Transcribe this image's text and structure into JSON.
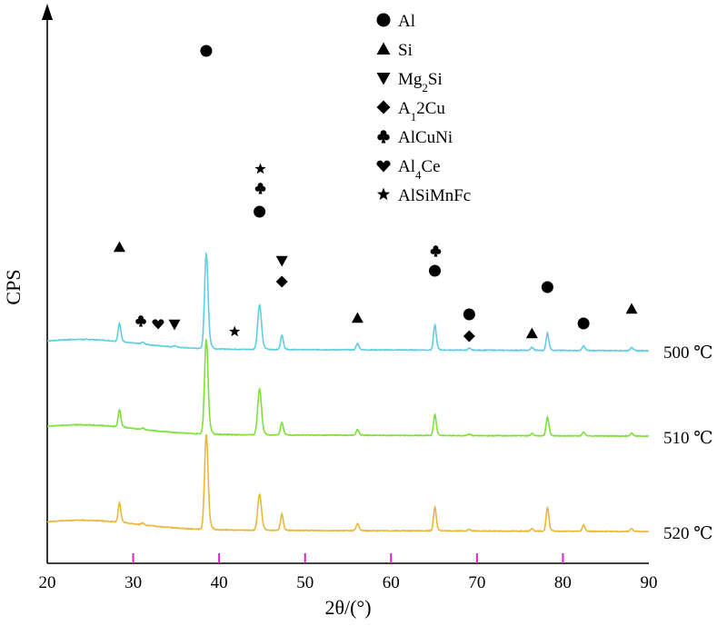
{
  "chart_data": {
    "type": "line",
    "title": "",
    "xlabel": "2θ/(°)",
    "ylabel": "CPS",
    "xlim": [
      20,
      90
    ],
    "xticks": [
      20,
      30,
      40,
      50,
      60,
      70,
      80,
      90
    ],
    "grid": false,
    "legend": {
      "placement": "top-center",
      "entries": [
        {
          "marker": "circle",
          "label": "Al"
        },
        {
          "marker": "triangle-up",
          "label": "Si"
        },
        {
          "marker": "triangle-down",
          "label": "Mg2Si"
        },
        {
          "marker": "diamond",
          "label": "A12Cu"
        },
        {
          "marker": "club",
          "label": "AlCuNi"
        },
        {
          "marker": "heart",
          "label": "Al4Ce"
        },
        {
          "marker": "star",
          "label": "AlSiMnFc"
        }
      ]
    },
    "peaks": [
      {
        "x": 28.4,
        "phase": "Si"
      },
      {
        "x": 31.1,
        "phase": "AlCuNi"
      },
      {
        "x": 32.8,
        "phase": "Al4Ce"
      },
      {
        "x": 34.8,
        "phase": "Mg2Si"
      },
      {
        "x": 38.5,
        "phase": "Al"
      },
      {
        "x": 41.8,
        "phase": "AlSiMnFc"
      },
      {
        "x": 44.7,
        "phase": "Al"
      },
      {
        "x": 44.8,
        "phase": "AlCuNi"
      },
      {
        "x": 44.8,
        "phase": "AlSiMnFc"
      },
      {
        "x": 47.3,
        "phase": "Mg2Si"
      },
      {
        "x": 47.3,
        "phase": "A12Cu"
      },
      {
        "x": 56.1,
        "phase": "Si"
      },
      {
        "x": 65.1,
        "phase": "Al"
      },
      {
        "x": 65.2,
        "phase": "AlCuNi"
      },
      {
        "x": 69.1,
        "phase": "Al"
      },
      {
        "x": 69.1,
        "phase": "A12Cu"
      },
      {
        "x": 76.4,
        "phase": "Si"
      },
      {
        "x": 78.2,
        "phase": "Al"
      },
      {
        "x": 82.4,
        "phase": "Al"
      },
      {
        "x": 88.0,
        "phase": "Si"
      }
    ],
    "series": [
      {
        "name": "500 ℃",
        "color": "#5fcfe0",
        "x": [
          20,
          28.4,
          31.1,
          34.8,
          38.5,
          44.7,
          47.3,
          56.1,
          65.1,
          69.1,
          76.4,
          78.2,
          82.4,
          88.0,
          90
        ],
        "y": [
          0,
          58,
          6,
          5,
          300,
          140,
          46,
          20,
          80,
          6,
          9,
          55,
          14,
          11,
          0
        ]
      },
      {
        "name": "510 ℃",
        "color": "#7ee03a",
        "x": [
          20,
          28.4,
          31.1,
          38.5,
          44.7,
          47.3,
          56.1,
          65.1,
          69.1,
          76.4,
          78.2,
          82.4,
          88.0,
          90
        ],
        "y": [
          0,
          55,
          5,
          300,
          145,
          40,
          18,
          66,
          5,
          7,
          60,
          13,
          9,
          0
        ]
      },
      {
        "name": "520 ℃",
        "color": "#e8b83a",
        "x": [
          20,
          28.4,
          31.1,
          38.5,
          44.7,
          47.3,
          56.1,
          65.1,
          69.1,
          76.4,
          78.2,
          82.4,
          88.0,
          90
        ],
        "y": [
          0,
          62,
          6,
          300,
          112,
          52,
          22,
          75,
          5,
          8,
          75,
          20,
          9,
          0
        ]
      }
    ]
  }
}
